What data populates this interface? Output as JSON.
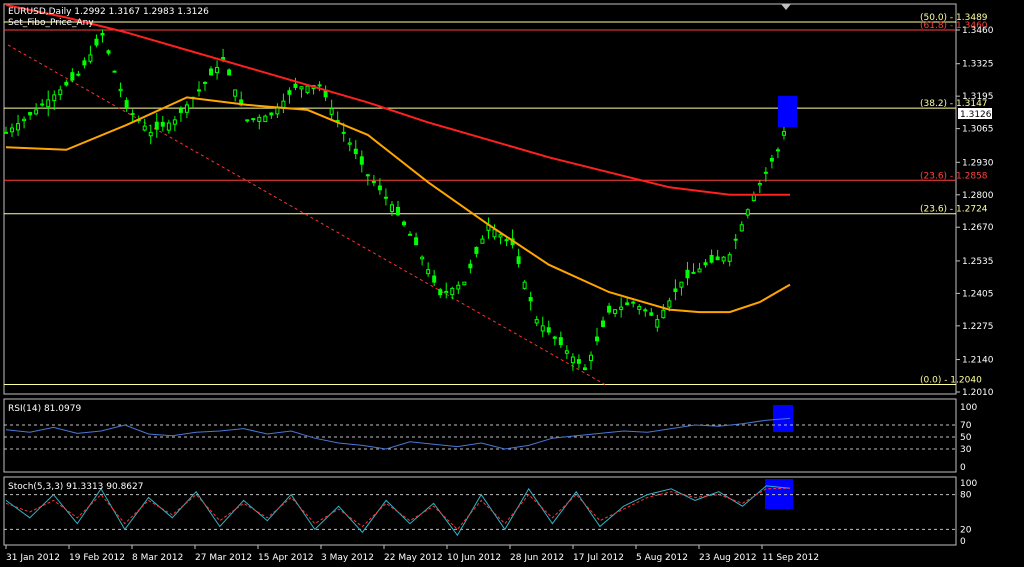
{
  "header": {
    "symbol_line": "EURUSD,Daily  1.2992 1.3167 1.2983 1.3126",
    "indicator_line": "Set_Fibo_Price_Any"
  },
  "current_price": "1.3126",
  "colors": {
    "background": "#000000",
    "frame": "#c0c0c0",
    "bull_candle": "#00ff00",
    "ma_fast": "#ffa500",
    "ma_slow": "#ff2020",
    "fibo_yellow": "#ffff99",
    "fibo_red": "#ff4040",
    "highlight": "#0000ff",
    "rsi_line": "#4a78d6",
    "stoch_main": "#2fb3c8",
    "stoch_signal": "#ff3030"
  },
  "fibo_labels": [
    {
      "text": "(50.0) - 1.3489",
      "price": 1.3489,
      "color": "#ffff99"
    },
    {
      "text": "(61.8) - 1.3460",
      "price": 1.346,
      "color": "#ff4040"
    },
    {
      "text": "(38.2) - 1.3147",
      "price": 1.3147,
      "color": "#ffff99"
    },
    {
      "text": "(23.6) - 1.2858",
      "price": 1.2858,
      "color": "#ff4040"
    },
    {
      "text": "(23.6) - 1.2724",
      "price": 1.2724,
      "color": "#ffff99"
    },
    {
      "text": "(0.0) - 1.2040",
      "price": 1.204,
      "color": "#ffff99"
    }
  ],
  "price_axis": [
    "1.3460",
    "1.3325",
    "1.3195",
    "1.3065",
    "1.2930",
    "1.2800",
    "1.2670",
    "1.2535",
    "1.2405",
    "1.2275",
    "1.2140",
    "1.2010"
  ],
  "date_axis": [
    "31 Jan 2012",
    "19 Feb 2012",
    "8 Mar 2012",
    "27 Mar 2012",
    "15 Apr 2012",
    "3 May 2012",
    "22 May 2012",
    "10 Jun 2012",
    "28 Jun 2012",
    "17 Jul 2012",
    "5 Aug 2012",
    "23 Aug 2012",
    "11 Sep 2012"
  ],
  "rsi": {
    "label": "RSI(14) 81.0979",
    "axis": [
      "100",
      "70",
      "50",
      "30",
      "0"
    ]
  },
  "stoch": {
    "label": "Stoch(5,3,3) 91.3313 90.8627",
    "axis": [
      "100",
      "80",
      "20",
      "0"
    ]
  },
  "chart_data": {
    "type": "line",
    "title": "EURUSD,Daily",
    "ylim": [
      1.201,
      1.352
    ],
    "series": [
      {
        "name": "",
        "x_index": [
          0,
          4,
          8,
          12,
          16,
          20,
          24,
          28,
          32,
          36,
          40,
          44,
          48,
          52,
          56,
          60,
          64,
          68,
          72,
          76,
          80,
          84,
          88,
          92,
          96,
          100,
          104,
          108,
          112,
          116,
          120,
          124,
          128,
          130
        ],
        "values": [
          1.305,
          1.312,
          1.32,
          1.328,
          1.344,
          1.315,
          1.305,
          1.31,
          1.322,
          1.334,
          1.31,
          1.312,
          1.323,
          1.324,
          1.305,
          1.288,
          1.276,
          1.26,
          1.24,
          1.245,
          1.268,
          1.26,
          1.23,
          1.22,
          1.21,
          1.233,
          1.237,
          1.23,
          1.245,
          1.252,
          1.256,
          1.28,
          1.298,
          1.3126
        ]
      },
      {
        "name": "",
        "x_index": [
          0,
          10,
          20,
          30,
          40,
          50,
          60,
          70,
          80,
          90,
          100,
          110,
          115,
          120,
          125,
          130
        ],
        "values": [
          1.299,
          1.298,
          1.308,
          1.319,
          1.316,
          1.314,
          1.304,
          1.285,
          1.268,
          1.252,
          1.241,
          1.234,
          1.233,
          1.233,
          1.237,
          1.244
        ]
      },
      {
        "name": "",
        "x_index": [
          0,
          10,
          20,
          30,
          40,
          50,
          60,
          70,
          80,
          90,
          100,
          110,
          120,
          130
        ],
        "values": [
          1.356,
          1.351,
          1.345,
          1.338,
          1.331,
          1.324,
          1.317,
          1.309,
          1.302,
          1.295,
          1.289,
          1.283,
          1.28,
          1.28
        ]
      }
    ],
    "rsi_series": [
      62,
      58,
      66,
      56,
      60,
      70,
      55,
      52,
      58,
      60,
      64,
      55,
      60,
      48,
      40,
      36,
      30,
      42,
      38,
      34,
      40,
      30,
      36,
      48,
      52,
      56,
      60,
      58,
      64,
      70,
      68,
      72,
      78,
      81
    ],
    "stoch_main": [
      70,
      40,
      80,
      30,
      90,
      20,
      75,
      40,
      85,
      25,
      70,
      35,
      80,
      20,
      60,
      15,
      70,
      30,
      65,
      10,
      80,
      20,
      90,
      30,
      85,
      25,
      60,
      80,
      90,
      70,
      85,
      60,
      95,
      91
    ],
    "stoch_signal": [
      65,
      50,
      70,
      40,
      80,
      30,
      70,
      45,
      80,
      35,
      65,
      40,
      75,
      30,
      55,
      25,
      65,
      35,
      60,
      20,
      70,
      30,
      80,
      40,
      80,
      35,
      55,
      75,
      85,
      75,
      80,
      65,
      90,
      91
    ]
  }
}
